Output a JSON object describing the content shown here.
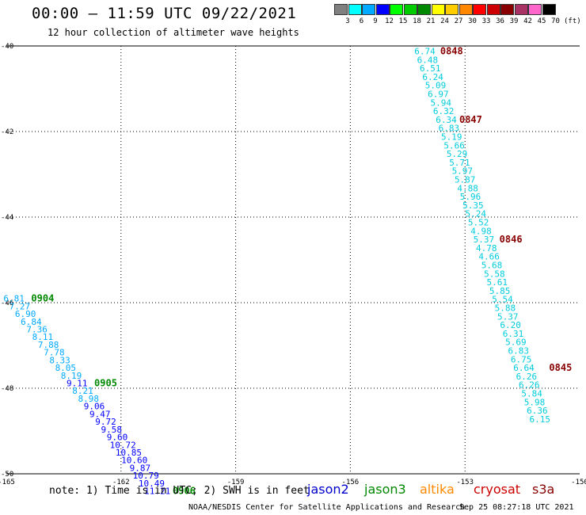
{
  "header": {
    "title": "00:00 – 11:59 UTC 09/22/2021",
    "subtitle": "12 hour collection of altimeter wave heights"
  },
  "legend": {
    "unit": "(ft)",
    "bins": [
      {
        "label": "3",
        "color": "#808080"
      },
      {
        "label": "6",
        "color": "#00ffff"
      },
      {
        "label": "9",
        "color": "#00aaff"
      },
      {
        "label": "12",
        "color": "#0000ff"
      },
      {
        "label": "15",
        "color": "#00ff00"
      },
      {
        "label": "18",
        "color": "#00cc00"
      },
      {
        "label": "21",
        "color": "#008800"
      },
      {
        "label": "24",
        "color": "#ffff00"
      },
      {
        "label": "27",
        "color": "#ffcc00"
      },
      {
        "label": "30",
        "color": "#ff8800"
      },
      {
        "label": "33",
        "color": "#ff0000"
      },
      {
        "label": "36",
        "color": "#cc0000"
      },
      {
        "label": "39",
        "color": "#880000"
      },
      {
        "label": "42",
        "color": "#aa3366"
      },
      {
        "label": "45",
        "color": "#ff66cc"
      },
      {
        "label": "70",
        "color": "#000000"
      }
    ]
  },
  "footer": {
    "note": "note:  1) Time is in UTC;  2) SWH is in feet",
    "satellites": [
      {
        "name": "jason2",
        "color": "#0000cc"
      },
      {
        "name": "jason3",
        "color": "#008800"
      },
      {
        "name": "altika",
        "color": "#ff8800"
      },
      {
        "name": "cryosat",
        "color": "#cc0000"
      },
      {
        "name": "s3a",
        "color": "#880000"
      }
    ],
    "credit": "NOAA/NESDIS Center for Satellite Applications and Research",
    "timestamp": "Sep 25 08:27:18 UTC 2021"
  },
  "chart_data": {
    "type": "scatter",
    "xlim": [
      -165,
      -150
    ],
    "ylim": [
      -50,
      -40
    ],
    "x_ticks": [
      -165,
      -162,
      -159,
      -156,
      -153,
      -150
    ],
    "y_ticks": [
      -40,
      -42,
      -44,
      -46,
      -48,
      -50
    ],
    "x_tick_labels": [
      "-165",
      "-162",
      "-159",
      "-156",
      "-153",
      "-150"
    ],
    "y_tick_labels": [
      "-40",
      "-42",
      "-44",
      "-46",
      "-48",
      "-50"
    ],
    "grid": true,
    "series": [
      {
        "name": "jason3",
        "points": [
          {
            "x": -164.8,
            "y": -45.9,
            "v": "6.81",
            "c": "#00aaff"
          },
          {
            "x": -164.65,
            "y": -46.08,
            "v": "7.27",
            "c": "#00aaff"
          },
          {
            "x": -164.5,
            "y": -46.26,
            "v": "6.90",
            "c": "#00aaff"
          },
          {
            "x": -164.35,
            "y": -46.44,
            "v": "6.84",
            "c": "#00aaff"
          },
          {
            "x": -164.2,
            "y": -46.62,
            "v": "7.36",
            "c": "#00aaff"
          },
          {
            "x": -164.05,
            "y": -46.8,
            "v": "8.11",
            "c": "#00aaff"
          },
          {
            "x": -163.9,
            "y": -46.98,
            "v": "7.88",
            "c": "#00aaff"
          },
          {
            "x": -163.75,
            "y": -47.16,
            "v": "7.78",
            "c": "#00aaff"
          },
          {
            "x": -163.6,
            "y": -47.34,
            "v": "8.33",
            "c": "#00aaff"
          },
          {
            "x": -163.45,
            "y": -47.52,
            "v": "8.05",
            "c": "#00aaff"
          },
          {
            "x": -163.3,
            "y": -47.7,
            "v": "8.19",
            "c": "#00aaff"
          },
          {
            "x": -163.15,
            "y": -47.88,
            "v": "9.11",
            "c": "#0000ff"
          },
          {
            "x": -163.0,
            "y": -48.06,
            "v": "8.21",
            "c": "#00aaff"
          },
          {
            "x": -162.85,
            "y": -48.24,
            "v": "8.98",
            "c": "#00aaff"
          },
          {
            "x": -162.7,
            "y": -48.42,
            "v": "9.06",
            "c": "#0000ff"
          },
          {
            "x": -162.55,
            "y": -48.6,
            "v": "9.47",
            "c": "#0000ff"
          },
          {
            "x": -162.4,
            "y": -48.78,
            "v": "9.72",
            "c": "#0000ff"
          },
          {
            "x": -162.25,
            "y": -48.96,
            "v": "9.58",
            "c": "#0000ff"
          },
          {
            "x": -162.1,
            "y": -49.14,
            "v": "9.60",
            "c": "#0000ff"
          },
          {
            "x": -161.95,
            "y": -49.32,
            "v": "10.72",
            "c": "#0000ff"
          },
          {
            "x": -161.8,
            "y": -49.5,
            "v": "10.85",
            "c": "#0000ff"
          },
          {
            "x": -161.65,
            "y": -49.68,
            "v": "10.60",
            "c": "#0000ff"
          },
          {
            "x": -161.5,
            "y": -49.86,
            "v": "9.87",
            "c": "#0000ff"
          },
          {
            "x": -161.35,
            "y": -50.04,
            "v": "10.79",
            "c": "#0000ff"
          },
          {
            "x": -161.2,
            "y": -50.22,
            "v": "10.49",
            "c": "#0000ff"
          },
          {
            "x": -161.05,
            "y": -50.4,
            "v": "11.21",
            "c": "#0000ff"
          }
        ],
        "time_labels": [
          {
            "x": -164.05,
            "y": -45.9,
            "t": "0904"
          },
          {
            "x": -162.4,
            "y": -47.88,
            "t": "0905"
          },
          {
            "x": -160.35,
            "y": -50.4,
            "t": "0906"
          }
        ]
      },
      {
        "name": "s3a",
        "points": [
          {
            "x": -154.05,
            "y": -40.12,
            "v": "6.74"
          },
          {
            "x": -153.98,
            "y": -40.32,
            "v": "6.48"
          },
          {
            "x": -153.91,
            "y": -40.52,
            "v": "6.51"
          },
          {
            "x": -153.84,
            "y": -40.72,
            "v": "6.24"
          },
          {
            "x": -153.77,
            "y": -40.92,
            "v": "5.09"
          },
          {
            "x": -153.7,
            "y": -41.12,
            "v": "6.97"
          },
          {
            "x": -153.63,
            "y": -41.32,
            "v": "5.94"
          },
          {
            "x": -153.56,
            "y": -41.52,
            "v": "6.32"
          },
          {
            "x": -153.49,
            "y": -41.72,
            "v": "6.34"
          },
          {
            "x": -153.42,
            "y": -41.92,
            "v": "6.83"
          },
          {
            "x": -153.35,
            "y": -42.12,
            "v": "5.19"
          },
          {
            "x": -153.28,
            "y": -42.32,
            "v": "5.66"
          },
          {
            "x": -153.21,
            "y": -42.52,
            "v": "5.29"
          },
          {
            "x": -153.14,
            "y": -42.72,
            "v": "5.71"
          },
          {
            "x": -153.07,
            "y": -42.92,
            "v": "5.97"
          },
          {
            "x": -153.0,
            "y": -43.12,
            "v": "5.87"
          },
          {
            "x": -152.93,
            "y": -43.32,
            "v": "4.88"
          },
          {
            "x": -152.86,
            "y": -43.52,
            "v": "5.96"
          },
          {
            "x": -152.79,
            "y": -43.72,
            "v": "5.35"
          },
          {
            "x": -152.72,
            "y": -43.92,
            "v": "5.24"
          },
          {
            "x": -152.65,
            "y": -44.12,
            "v": "5.52"
          },
          {
            "x": -152.58,
            "y": -44.32,
            "v": "4.98"
          },
          {
            "x": -152.51,
            "y": -44.52,
            "v": "5.37"
          },
          {
            "x": -152.44,
            "y": -44.72,
            "v": "4.78"
          },
          {
            "x": -152.37,
            "y": -44.92,
            "v": "4.66"
          },
          {
            "x": -152.3,
            "y": -45.12,
            "v": "5.68"
          },
          {
            "x": -152.23,
            "y": -45.32,
            "v": "5.58"
          },
          {
            "x": -152.16,
            "y": -45.52,
            "v": "5.61"
          },
          {
            "x": -152.09,
            "y": -45.72,
            "v": "5.85"
          },
          {
            "x": -152.02,
            "y": -45.92,
            "v": "5.54"
          },
          {
            "x": -151.95,
            "y": -46.12,
            "v": "5.88"
          },
          {
            "x": -151.88,
            "y": -46.32,
            "v": "5.37"
          },
          {
            "x": -151.81,
            "y": -46.52,
            "v": "6.20"
          },
          {
            "x": -151.74,
            "y": -46.72,
            "v": "6.31"
          },
          {
            "x": -151.67,
            "y": -46.92,
            "v": "5.69"
          },
          {
            "x": -151.6,
            "y": -47.12,
            "v": "6.83"
          },
          {
            "x": -151.53,
            "y": -47.32,
            "v": "6.75"
          },
          {
            "x": -151.46,
            "y": -47.52,
            "v": "6.64"
          },
          {
            "x": -151.39,
            "y": -47.72,
            "v": "6.26"
          },
          {
            "x": -151.32,
            "y": -47.92,
            "v": "6.26"
          },
          {
            "x": -151.25,
            "y": -48.12,
            "v": "5.84"
          },
          {
            "x": -151.18,
            "y": -48.32,
            "v": "5.98"
          },
          {
            "x": -151.11,
            "y": -48.52,
            "v": "6.36"
          },
          {
            "x": -151.04,
            "y": -48.72,
            "v": "6.15"
          }
        ],
        "time_labels": [
          {
            "x": -153.35,
            "y": -40.12,
            "t": "0848"
          },
          {
            "x": -152.85,
            "y": -41.72,
            "t": "0847"
          },
          {
            "x": -151.8,
            "y": -44.52,
            "t": "0846"
          },
          {
            "x": -150.5,
            "y": -47.52,
            "t": "0845"
          }
        ]
      }
    ]
  }
}
